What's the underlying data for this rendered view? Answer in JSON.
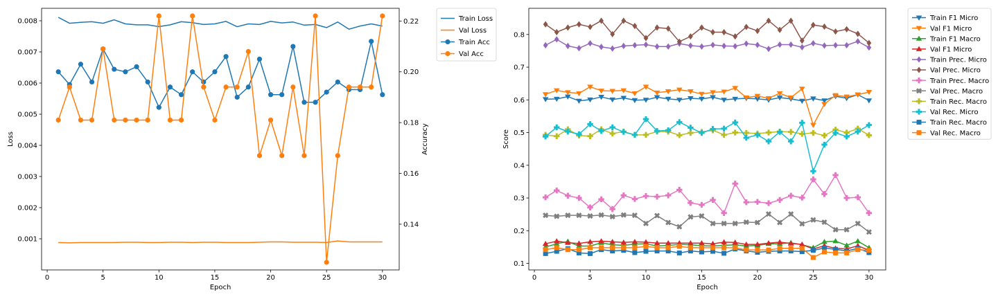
{
  "chart_data": [
    {
      "type": "line",
      "x": [
        1,
        2,
        3,
        4,
        5,
        6,
        7,
        8,
        9,
        10,
        11,
        12,
        13,
        14,
        15,
        16,
        17,
        18,
        19,
        20,
        21,
        22,
        23,
        24,
        25,
        26,
        27,
        28,
        29,
        30
      ],
      "xlabel": "Epoch",
      "ylabel": "Loss",
      "y2label": "Accuracy",
      "xlim": [
        -0.5,
        31.5
      ],
      "ylim": [
        0.0,
        0.0084
      ],
      "y2lim": [
        0.122,
        0.225
      ],
      "xticks": [
        "0",
        "5",
        "10",
        "15",
        "20",
        "25",
        "30"
      ],
      "yticks": [
        "0.001",
        "0.002",
        "0.003",
        "0.004",
        "0.005",
        "0.006",
        "0.007",
        "0.008"
      ],
      "y2ticks": [
        "0.14",
        "0.16",
        "0.18",
        "0.20",
        "0.22"
      ],
      "grid": false,
      "legend_placement": "outside-right",
      "series": [
        {
          "name": "Train Loss",
          "axis": "left",
          "color": "#1f77b4",
          "marker": "none",
          "values": [
            0.00811,
            0.00792,
            0.00795,
            0.00797,
            0.00792,
            0.00803,
            0.0079,
            0.00787,
            0.00787,
            0.00781,
            0.00787,
            0.00797,
            0.00794,
            0.00788,
            0.0079,
            0.00798,
            0.00781,
            0.0079,
            0.00788,
            0.00798,
            0.00793,
            0.00796,
            0.00786,
            0.00788,
            0.00778,
            0.00796,
            0.00773,
            0.00783,
            0.0079,
            0.00783
          ]
        },
        {
          "name": "Val Loss",
          "axis": "left",
          "color": "#ff7f0e",
          "marker": "none",
          "values": [
            0.00088,
            0.00087,
            0.00088,
            0.00088,
            0.00088,
            0.00088,
            0.00089,
            0.00089,
            0.00088,
            0.00088,
            0.00089,
            0.00089,
            0.00088,
            0.00089,
            0.00089,
            0.00088,
            0.00088,
            0.00088,
            0.00089,
            0.0009,
            0.0009,
            0.00089,
            0.00089,
            0.00089,
            0.00088,
            0.00093,
            0.0009,
            0.0009,
            0.0009,
            0.0009
          ]
        },
        {
          "name": "Train Acc",
          "axis": "right",
          "color": "#1f77b4",
          "marker": "circle",
          "values": [
            0.2,
            0.195,
            0.203,
            0.196,
            0.209,
            0.201,
            0.2,
            0.202,
            0.196,
            0.186,
            0.194,
            0.191,
            0.2,
            0.196,
            0.2,
            0.206,
            0.19,
            0.194,
            0.205,
            0.191,
            0.191,
            0.21,
            0.188,
            0.188,
            0.192,
            0.196,
            0.193,
            0.193,
            0.212,
            0.191
          ]
        },
        {
          "name": "Val Acc",
          "axis": "right",
          "color": "#ff7f0e",
          "marker": "circle",
          "values": [
            0.181,
            0.194,
            0.181,
            0.181,
            0.209,
            0.181,
            0.181,
            0.181,
            0.181,
            0.222,
            0.181,
            0.181,
            0.222,
            0.194,
            0.181,
            0.194,
            0.194,
            0.208,
            0.167,
            0.181,
            0.167,
            0.194,
            0.167,
            0.222,
            0.125,
            0.167,
            0.194,
            0.194,
            0.194,
            0.222
          ]
        }
      ]
    },
    {
      "type": "line",
      "x": [
        1,
        2,
        3,
        4,
        5,
        6,
        7,
        8,
        9,
        10,
        11,
        12,
        13,
        14,
        15,
        16,
        17,
        18,
        19,
        20,
        21,
        22,
        23,
        24,
        25,
        26,
        27,
        28,
        29,
        30
      ],
      "xlabel": "Epoch",
      "ylabel": "Score",
      "xlim": [
        -0.5,
        31.5
      ],
      "ylim": [
        0.08,
        0.88
      ],
      "xticks": [
        "0",
        "5",
        "10",
        "15",
        "20",
        "25",
        "30"
      ],
      "yticks": [
        "0.1",
        "0.2",
        "0.3",
        "0.4",
        "0.5",
        "0.6",
        "0.7",
        "0.8"
      ],
      "grid": false,
      "legend_placement": "outside-right",
      "series": [
        {
          "name": "Train F1 Micro",
          "color": "#1f77b4",
          "marker": "tri-down",
          "values": [
            0.602,
            0.603,
            0.61,
            0.597,
            0.601,
            0.609,
            0.601,
            0.606,
            0.599,
            0.6,
            0.608,
            0.603,
            0.6,
            0.605,
            0.603,
            0.608,
            0.6,
            0.603,
            0.605,
            0.603,
            0.6,
            0.607,
            0.603,
            0.597,
            0.604,
            0.598,
            0.611,
            0.605,
            0.616,
            0.598
          ]
        },
        {
          "name": "Val F1 Micro",
          "color": "#ff7f0e",
          "marker": "tri-down",
          "values": [
            0.617,
            0.629,
            0.623,
            0.62,
            0.64,
            0.628,
            0.627,
            0.629,
            0.62,
            0.64,
            0.622,
            0.626,
            0.631,
            0.626,
            0.618,
            0.623,
            0.625,
            0.636,
            0.607,
            0.612,
            0.605,
            0.62,
            0.607,
            0.634,
            0.523,
            0.587,
            0.614,
            0.61,
            0.616,
            0.624
          ]
        },
        {
          "name": "Train F1 Macro",
          "color": "#2ca02c",
          "marker": "tri-up",
          "values": [
            0.15,
            0.16,
            0.167,
            0.153,
            0.153,
            0.163,
            0.157,
            0.155,
            0.159,
            0.16,
            0.153,
            0.155,
            0.158,
            0.157,
            0.154,
            0.153,
            0.155,
            0.157,
            0.153,
            0.155,
            0.16,
            0.16,
            0.163,
            0.157,
            0.148,
            0.166,
            0.168,
            0.155,
            0.168,
            0.148
          ]
        },
        {
          "name": "Val F1 Micro",
          "color": "#d62728",
          "marker": "tri-up",
          "values": [
            0.16,
            0.168,
            0.163,
            0.161,
            0.166,
            0.168,
            0.166,
            0.164,
            0.166,
            0.165,
            0.162,
            0.162,
            0.162,
            0.162,
            0.162,
            0.16,
            0.165,
            0.164,
            0.158,
            0.158,
            0.162,
            0.165,
            0.161,
            0.158,
            0.144,
            0.154,
            0.146,
            0.144,
            0.154,
            0.14
          ]
        },
        {
          "name": "Train Prec. Micro",
          "color": "#9467bd",
          "marker": "diamond",
          "values": [
            0.767,
            0.785,
            0.765,
            0.758,
            0.773,
            0.762,
            0.757,
            0.765,
            0.767,
            0.769,
            0.763,
            0.763,
            0.772,
            0.766,
            0.763,
            0.768,
            0.765,
            0.764,
            0.772,
            0.768,
            0.756,
            0.769,
            0.769,
            0.761,
            0.773,
            0.766,
            0.767,
            0.767,
            0.779,
            0.76
          ]
        },
        {
          "name": "Val Prec. Micro",
          "color": "#8c564b",
          "marker": "diamond",
          "values": [
            0.831,
            0.807,
            0.821,
            0.831,
            0.823,
            0.842,
            0.801,
            0.842,
            0.826,
            0.789,
            0.821,
            0.818,
            0.778,
            0.794,
            0.821,
            0.807,
            0.807,
            0.794,
            0.823,
            0.811,
            0.842,
            0.814,
            0.842,
            0.781,
            0.829,
            0.824,
            0.809,
            0.816,
            0.802,
            0.774
          ]
        },
        {
          "name": "Train Prec. Macro",
          "color": "#e377c2",
          "marker": "plus-bold",
          "values": [
            0.302,
            0.323,
            0.307,
            0.3,
            0.271,
            0.296,
            0.266,
            0.308,
            0.297,
            0.306,
            0.304,
            0.308,
            0.325,
            0.285,
            0.279,
            0.294,
            0.254,
            0.344,
            0.287,
            0.288,
            0.284,
            0.294,
            0.307,
            0.301,
            0.357,
            0.312,
            0.37,
            0.3,
            0.302,
            0.254
          ]
        },
        {
          "name": "Val Prec. Macro",
          "color": "#7f7f7f",
          "marker": "x-bold",
          "values": [
            0.247,
            0.244,
            0.247,
            0.247,
            0.245,
            0.248,
            0.243,
            0.248,
            0.247,
            0.222,
            0.246,
            0.225,
            0.212,
            0.242,
            0.245,
            0.222,
            0.222,
            0.222,
            0.226,
            0.225,
            0.251,
            0.225,
            0.251,
            0.221,
            0.233,
            0.226,
            0.203,
            0.203,
            0.222,
            0.196
          ]
        },
        {
          "name": "Train Rec. Macro",
          "color": "#bcbd22",
          "marker": "plus-bold",
          "values": [
            0.493,
            0.489,
            0.51,
            0.491,
            0.489,
            0.51,
            0.497,
            0.503,
            0.493,
            0.493,
            0.503,
            0.503,
            0.492,
            0.499,
            0.502,
            0.507,
            0.493,
            0.5,
            0.499,
            0.497,
            0.5,
            0.503,
            0.502,
            0.496,
            0.499,
            0.491,
            0.509,
            0.5,
            0.512,
            0.492
          ]
        },
        {
          "name": "Val Rec. Micro",
          "color": "#17becf",
          "marker": "plus-bold",
          "values": [
            0.488,
            0.516,
            0.503,
            0.495,
            0.526,
            0.505,
            0.516,
            0.502,
            0.493,
            0.541,
            0.505,
            0.507,
            0.532,
            0.515,
            0.499,
            0.511,
            0.512,
            0.531,
            0.484,
            0.493,
            0.473,
            0.502,
            0.473,
            0.53,
            0.382,
            0.463,
            0.499,
            0.488,
            0.503,
            0.523
          ]
        },
        {
          "name": "Train Rec. Macro",
          "color": "#1f77b4",
          "marker": "square",
          "values": [
            0.13,
            0.137,
            0.145,
            0.132,
            0.13,
            0.142,
            0.138,
            0.14,
            0.133,
            0.137,
            0.138,
            0.138,
            0.132,
            0.138,
            0.135,
            0.137,
            0.131,
            0.144,
            0.138,
            0.134,
            0.137,
            0.138,
            0.138,
            0.136,
            0.14,
            0.147,
            0.143,
            0.138,
            0.146,
            0.133
          ]
        },
        {
          "name": "Val Rec. Macro",
          "color": "#ff7f0e",
          "marker": "square",
          "values": [
            0.142,
            0.148,
            0.142,
            0.142,
            0.148,
            0.148,
            0.148,
            0.148,
            0.148,
            0.152,
            0.148,
            0.148,
            0.152,
            0.148,
            0.148,
            0.148,
            0.148,
            0.148,
            0.141,
            0.141,
            0.141,
            0.146,
            0.146,
            0.146,
            0.118,
            0.135,
            0.132,
            0.132,
            0.142,
            0.14
          ]
        }
      ]
    }
  ]
}
